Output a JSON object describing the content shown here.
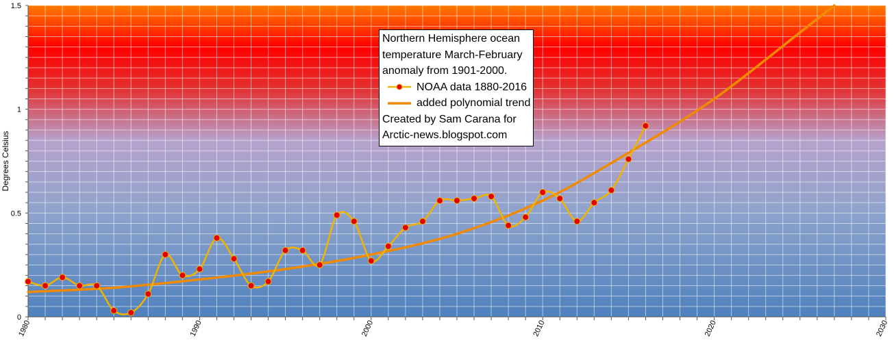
{
  "chart_data": {
    "type": "line",
    "title": "",
    "xlabel": "",
    "ylabel": "Degrees Celsius",
    "xlim": [
      1980,
      2030
    ],
    "ylim": [
      0,
      1.5
    ],
    "x_ticks": [
      "1980",
      "1990",
      "2000",
      "2010",
      "2020",
      "2030"
    ],
    "y_ticks": [
      "0",
      "0.5",
      "1",
      "1.5"
    ],
    "grid": true,
    "legend_placement": "top-center",
    "background": {
      "type": "vertical-gradient",
      "stops": [
        {
          "y": 0.0,
          "color": "#4f81bd"
        },
        {
          "y": 0.5,
          "color": "#8ea3cc"
        },
        {
          "y": 0.85,
          "color": "#b6a2cc"
        },
        {
          "y": 1.1,
          "color": "#e33030"
        },
        {
          "y": 1.3,
          "color": "#ff0000"
        },
        {
          "y": 1.5,
          "color": "#ff7a00"
        }
      ]
    },
    "series": [
      {
        "name": "NOAA data 1880-2016",
        "style": "smooth-line-with-markers",
        "line_color": "#f0b400",
        "marker_color": "#e30000",
        "x": [
          1980,
          1981,
          1982,
          1983,
          1984,
          1985,
          1986,
          1987,
          1988,
          1989,
          1990,
          1991,
          1992,
          1993,
          1994,
          1995,
          1996,
          1997,
          1998,
          1999,
          2000,
          2001,
          2002,
          2003,
          2004,
          2005,
          2006,
          2007,
          2008,
          2009,
          2010,
          2011,
          2012,
          2013,
          2014,
          2015,
          2016
        ],
        "y": [
          0.17,
          0.15,
          0.19,
          0.15,
          0.15,
          0.03,
          0.02,
          0.11,
          0.3,
          0.2,
          0.23,
          0.38,
          0.28,
          0.15,
          0.17,
          0.32,
          0.32,
          0.25,
          0.49,
          0.46,
          0.27,
          0.34,
          0.43,
          0.46,
          0.56,
          0.56,
          0.57,
          0.58,
          0.44,
          0.48,
          0.6,
          0.57,
          0.46,
          0.55,
          0.61,
          0.76,
          0.92
        ]
      },
      {
        "name": "added polynomial trend",
        "style": "line",
        "line_color": "#f08a00",
        "x": [
          1980,
          1985,
          1990,
          1995,
          2000,
          2005,
          2010,
          2015,
          2020,
          2025,
          2027
        ],
        "y": [
          0.12,
          0.14,
          0.18,
          0.23,
          0.3,
          0.4,
          0.56,
          0.79,
          1.05,
          1.37,
          1.5
        ]
      }
    ],
    "annotation": {
      "lines": [
        "Northern Hemisphere ocean",
        "temperature March-February",
        "anomaly from 1901-2000."
      ],
      "credit_lines": [
        "Created by Sam Carana for",
        "Arctic-news.blogspot.com"
      ]
    }
  }
}
